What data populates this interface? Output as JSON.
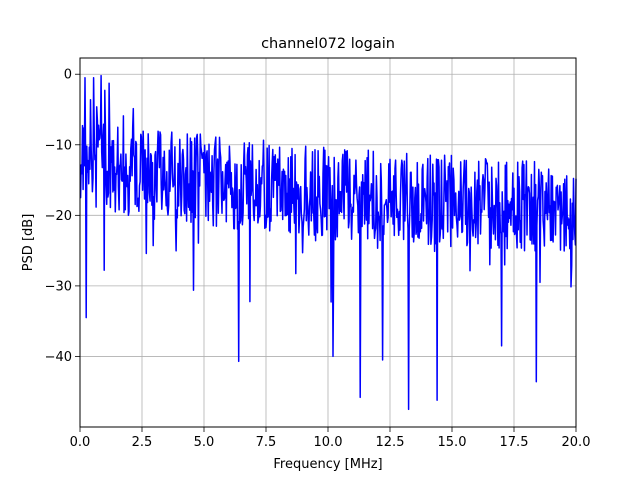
{
  "chart_data": {
    "type": "line",
    "title": "channel072 logain",
    "xlabel": "Frequency [MHz]",
    "ylabel": "PSD [dB]",
    "xlim": [
      0,
      20
    ],
    "ylim": [
      -50,
      2.3
    ],
    "grid": true,
    "xticks": [
      0,
      2.5,
      5,
      7.5,
      10,
      12.5,
      15,
      17.5,
      20
    ],
    "xtick_labels": [
      "0.0",
      "2.5",
      "5.0",
      "7.5",
      "10.0",
      "12.5",
      "15.0",
      "17.5",
      "20.0"
    ],
    "yticks": [
      0,
      -10,
      -20,
      -30,
      -40
    ],
    "ytick_labels": [
      "0",
      "−10",
      "−20",
      "−30",
      "−40"
    ],
    "series": [
      {
        "color": "#0000ff",
        "x_start": 0,
        "x_end": 20,
        "points": 801,
        "trend_start_db": -11,
        "trend_end_db": -19,
        "notable_points": [
          {
            "x": 0.55,
            "y": -0.5
          },
          {
            "x": 0.85,
            "y": -0.2
          },
          {
            "x": 0.25,
            "y": -34.5
          },
          {
            "x": 6.4,
            "y": -40.7
          },
          {
            "x": 10.2,
            "y": -40.0
          },
          {
            "x": 11.3,
            "y": -45.8
          },
          {
            "x": 12.2,
            "y": -40.5
          },
          {
            "x": 13.25,
            "y": -47.5
          },
          {
            "x": 14.4,
            "y": -46.2
          },
          {
            "x": 17.0,
            "y": -38.5
          },
          {
            "x": 18.4,
            "y": -43.6
          }
        ]
      }
    ]
  }
}
